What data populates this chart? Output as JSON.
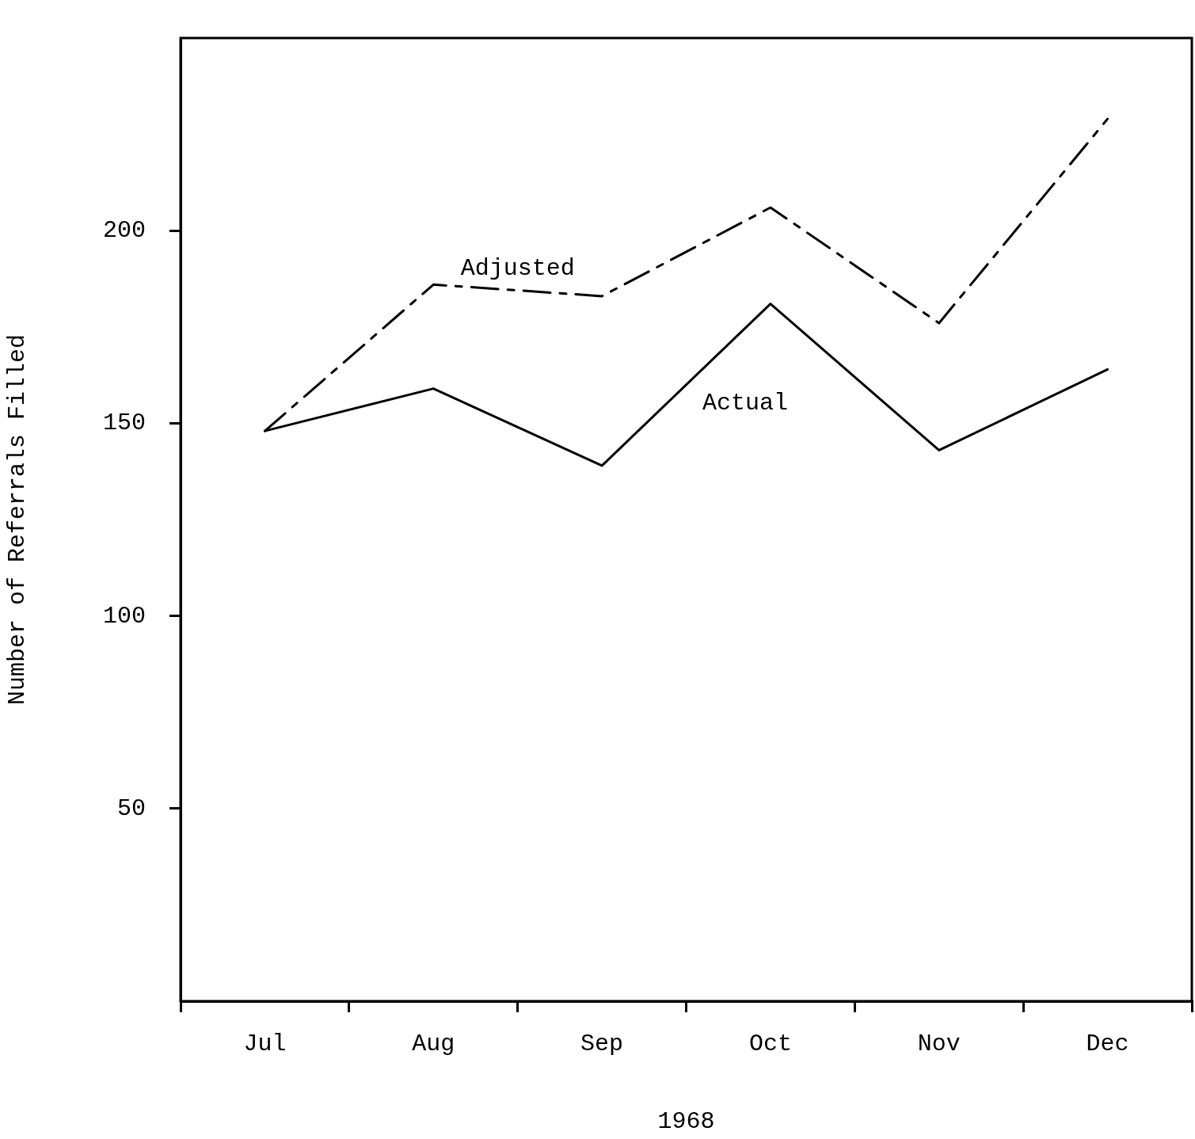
{
  "chart_data": {
    "type": "line",
    "xlabel": "1968",
    "ylabel": "Number of Referrals Filled",
    "categories": [
      "Jul",
      "Aug",
      "Sep",
      "Oct",
      "Nov",
      "Dec"
    ],
    "series": [
      {
        "name": "Adjusted",
        "color": "#000000",
        "line_style": "dashed",
        "values": [
          148,
          186,
          183,
          206,
          176,
          229
        ]
      },
      {
        "name": "Actual",
        "color": "#000000",
        "line_style": "solid",
        "values": [
          148,
          159,
          139,
          181,
          143,
          164
        ]
      }
    ],
    "ylim": [
      0,
      250
    ],
    "yticks": [
      50,
      100,
      150,
      200
    ],
    "grid": false,
    "legend": false,
    "marker": "none"
  }
}
